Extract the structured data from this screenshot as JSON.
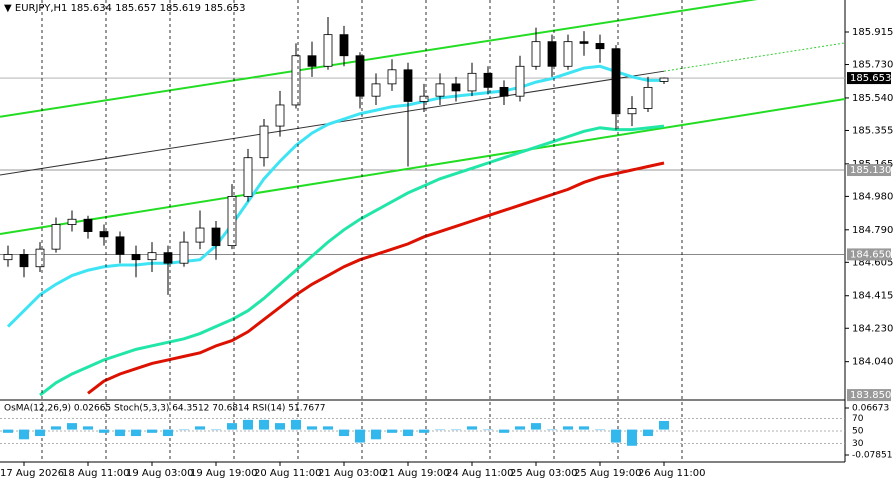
{
  "chart_data": {
    "type": "candlestick",
    "title": "EURJPY,H1  185.634 185.657 185.619 185.653",
    "categories": [
      null,
      "17 Aug 2026",
      null,
      null,
      null,
      "18 Aug 11:00",
      null,
      null,
      null,
      "19 Aug 03:00",
      null,
      null,
      null,
      "19 Aug 19:00",
      null,
      null,
      null,
      "20 Aug 11:00",
      null,
      null,
      null,
      "21 Aug 03:00",
      null,
      null,
      null,
      "21 Aug 19:00",
      null,
      null,
      null,
      "24 Aug 11:00",
      null,
      null,
      null,
      "25 Aug 03:00",
      null,
      null,
      null,
      "25 Aug 19:00",
      null,
      null,
      null,
      "26 Aug 11:00"
    ],
    "candles": [
      [
        184.62,
        184.7,
        184.58,
        184.65
      ],
      [
        184.65,
        184.68,
        184.52,
        184.58
      ],
      [
        184.58,
        184.72,
        184.55,
        184.68
      ],
      [
        184.68,
        184.86,
        184.66,
        184.82
      ],
      [
        184.82,
        184.9,
        184.78,
        184.85
      ],
      [
        184.85,
        184.87,
        184.74,
        184.78
      ],
      [
        184.78,
        184.82,
        184.7,
        184.75
      ],
      [
        184.75,
        184.78,
        184.6,
        184.65
      ],
      [
        184.65,
        184.7,
        184.52,
        184.62
      ],
      [
        184.62,
        184.72,
        184.55,
        184.66
      ],
      [
        184.66,
        184.7,
        184.42,
        184.6
      ],
      [
        184.6,
        184.78,
        184.58,
        184.72
      ],
      [
        184.72,
        184.9,
        184.68,
        184.8
      ],
      [
        184.8,
        184.84,
        184.62,
        184.7
      ],
      [
        184.7,
        185.05,
        184.68,
        184.98
      ],
      [
        184.98,
        185.25,
        184.95,
        185.2
      ],
      [
        185.2,
        185.42,
        185.15,
        185.38
      ],
      [
        185.38,
        185.58,
        185.32,
        185.5
      ],
      [
        185.5,
        185.85,
        185.48,
        185.78
      ],
      [
        185.78,
        185.86,
        185.66,
        185.72
      ],
      [
        185.72,
        186.0,
        185.7,
        185.9
      ],
      [
        185.9,
        185.95,
        185.72,
        185.78
      ],
      [
        185.78,
        185.8,
        185.48,
        185.55
      ],
      [
        185.55,
        185.68,
        185.5,
        185.62
      ],
      [
        185.62,
        185.76,
        185.58,
        185.7
      ],
      [
        185.7,
        185.74,
        185.15,
        185.52
      ],
      [
        185.52,
        185.62,
        185.46,
        185.55
      ],
      [
        185.55,
        185.68,
        185.5,
        185.62
      ],
      [
        185.62,
        185.66,
        185.52,
        185.58
      ],
      [
        185.58,
        185.74,
        185.55,
        185.68
      ],
      [
        185.68,
        185.72,
        185.56,
        185.6
      ],
      [
        185.6,
        185.64,
        185.5,
        185.55
      ],
      [
        185.55,
        185.78,
        185.52,
        185.72
      ],
      [
        185.72,
        185.94,
        185.7,
        185.86
      ],
      [
        185.86,
        185.9,
        185.66,
        185.72
      ],
      [
        185.72,
        185.9,
        185.7,
        185.86
      ],
      [
        185.86,
        185.92,
        185.78,
        185.85
      ],
      [
        185.85,
        185.9,
        185.74,
        185.82
      ],
      [
        185.82,
        185.84,
        185.36,
        185.45
      ],
      [
        185.45,
        185.55,
        185.38,
        185.48
      ],
      [
        185.48,
        185.66,
        185.46,
        185.6
      ],
      [
        185.634,
        185.657,
        185.619,
        185.653
      ]
    ],
    "series": [
      {
        "color": "#3fe4f4",
        "values": [
          184.24,
          184.33,
          184.42,
          184.48,
          184.53,
          184.56,
          184.58,
          184.59,
          184.59,
          184.6,
          184.6,
          184.61,
          184.62,
          184.7,
          184.82,
          184.95,
          185.08,
          185.18,
          185.27,
          185.34,
          185.39,
          185.42,
          185.45,
          185.47,
          185.49,
          185.5,
          185.52,
          185.54,
          185.55,
          185.56,
          185.57,
          185.58,
          185.6,
          185.63,
          185.65,
          185.68,
          185.71,
          185.72,
          185.69,
          185.66,
          185.64,
          185.64
        ]
      },
      {
        "color": "#22e6a8",
        "values": [
          null,
          null,
          183.85,
          183.92,
          183.97,
          184.01,
          184.05,
          184.08,
          184.11,
          184.13,
          184.15,
          184.17,
          184.2,
          184.24,
          184.28,
          184.33,
          184.4,
          184.48,
          184.56,
          184.64,
          184.72,
          184.79,
          184.85,
          184.9,
          184.95,
          185.0,
          185.04,
          185.08,
          185.11,
          185.14,
          185.17,
          185.2,
          185.23,
          185.26,
          185.29,
          185.32,
          185.35,
          185.37,
          185.36,
          185.36,
          185.37,
          185.38
        ]
      },
      {
        "color": "#dd1100",
        "values": [
          null,
          null,
          null,
          null,
          null,
          183.86,
          183.93,
          183.97,
          184.0,
          184.03,
          184.05,
          184.07,
          184.09,
          184.13,
          184.16,
          184.21,
          184.28,
          184.35,
          184.42,
          184.48,
          184.53,
          184.58,
          184.62,
          184.65,
          184.68,
          184.71,
          184.75,
          184.78,
          184.81,
          184.84,
          184.87,
          184.9,
          184.93,
          184.96,
          184.99,
          185.02,
          185.06,
          185.09,
          185.11,
          185.13,
          185.15,
          185.17
        ]
      }
    ],
    "trendlines": [
      {
        "color": "#22dd22",
        "values": [
          185.433,
          186.18
        ]
      },
      {
        "color": "#22dd22",
        "values": [
          184.766,
          185.534
        ]
      },
      {
        "color": "#333333",
        "values": [
          185.102,
          185.853
        ]
      }
    ],
    "ylim": [
      183.822,
      186.097
    ],
    "yticks": [
      185.915,
      {
        "value": 185.73,
        "label": "185.730"
      },
      {
        "value": 185.54,
        "label": "185.540"
      },
      185.355,
      185.165,
      {
        "value": 184.98,
        "label": "184.980"
      },
      {
        "value": 184.79,
        "label": "184.790"
      },
      184.605,
      184.415,
      {
        "value": 184.23,
        "label": "184.230"
      },
      {
        "value": 184.04,
        "label": "184.040"
      }
    ],
    "price_levels": [
      {
        "value": 185.653,
        "label": "185.653"
      },
      {
        "value": 185.13,
        "label": "185.130"
      },
      {
        "value": 184.65,
        "label": "184.650"
      },
      {
        "value": 183.85,
        "label": "183.850"
      }
    ],
    "indicator": {
      "title": "OsMA(12,26,9) 0.02665 Stoch(5,3,3) 64.3512 70.6814 RSI(14) 51.7677",
      "color": "#33b8ee",
      "values": [
        -0.01,
        -0.03,
        -0.02,
        0.01,
        0.02,
        0.01,
        -0.01,
        -0.02,
        -0.02,
        -0.01,
        -0.02,
        0,
        0.01,
        0,
        0.02,
        0.03,
        0.03,
        0.02,
        0.03,
        0.01,
        0.01,
        -0.02,
        -0.04,
        -0.03,
        -0.01,
        -0.02,
        -0.01,
        0,
        0,
        0.01,
        0,
        -0.01,
        0.01,
        0.02,
        0,
        0.01,
        0.01,
        0,
        -0.04,
        -0.05,
        -0.02,
        0.02665
      ],
      "ylim": [
        -0.1001,
        0.0914
      ],
      "yticks": [
        0.06673,
        -0.07851
      ],
      "level_lim": [
        0,
        100
      ],
      "levels": [
        70,
        50,
        30
      ]
    }
  }
}
